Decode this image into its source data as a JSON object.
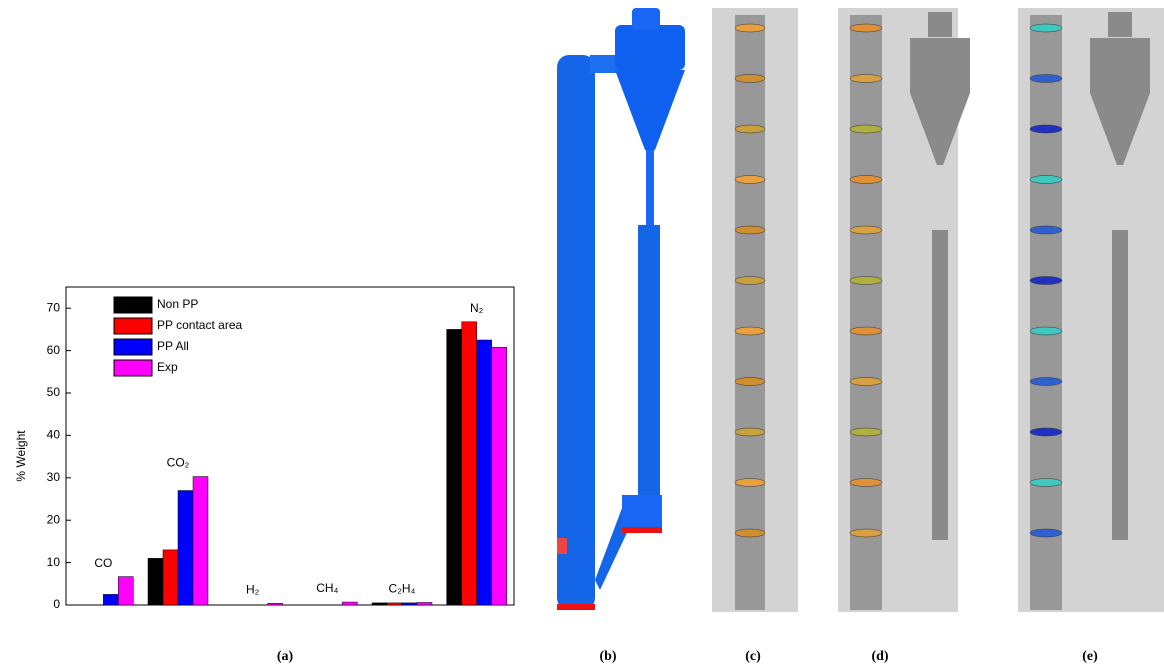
{
  "chart_data": {
    "type": "bar",
    "y_label": "% Weight",
    "categories": [
      "CO",
      "CO₂",
      "H₂",
      "CH₄",
      "C₂H₄",
      "N₂"
    ],
    "series": [
      {
        "name": "Non PP",
        "color": "#000000",
        "values": [
          0,
          11,
          0,
          0,
          0.5,
          65
        ]
      },
      {
        "name": "PP contact area",
        "color": "#ff0000",
        "values": [
          0,
          13,
          0,
          0,
          0.5,
          66.8
        ]
      },
      {
        "name": "PP All",
        "color": "#0000ff",
        "values": [
          2.5,
          27,
          0,
          0,
          0.5,
          62.5
        ]
      },
      {
        "name": "Exp",
        "color": "#ff00ff",
        "values": [
          6.7,
          30.3,
          0.4,
          0.7,
          0.6,
          60.8
        ]
      }
    ],
    "ylim": [
      0,
      75
    ],
    "yticks": [
      0,
      10,
      20,
      30,
      40,
      50,
      60,
      70
    ],
    "legend": "upper-left"
  },
  "panel_labels": [
    "(a)",
    "(b)",
    "(c)",
    "(d)",
    "(e)"
  ]
}
